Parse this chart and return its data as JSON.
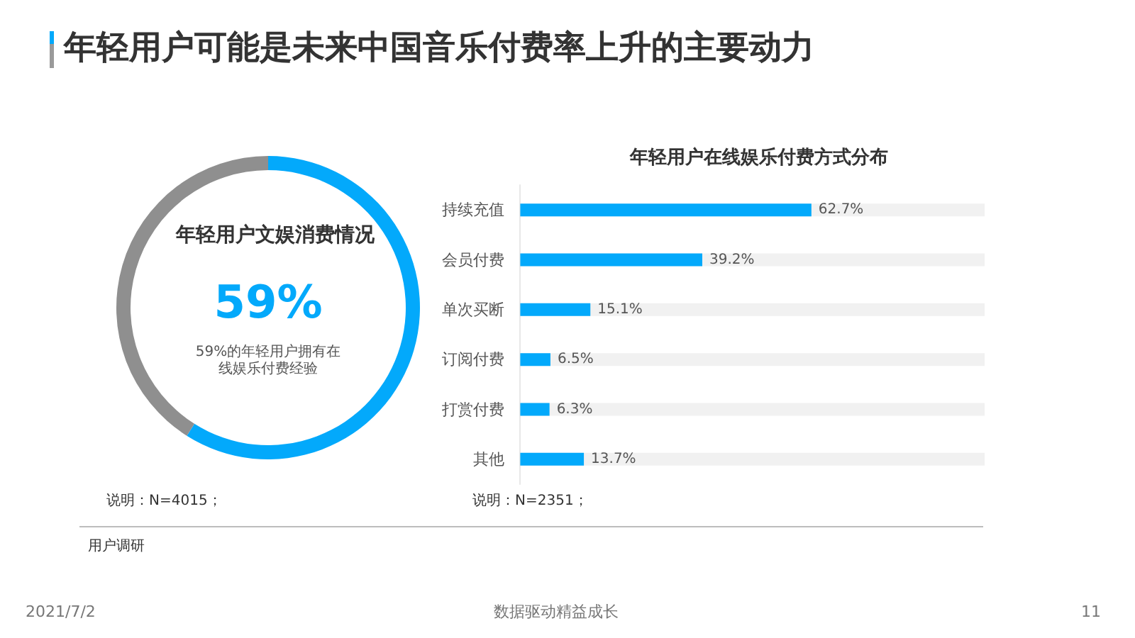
{
  "chart_data": [
    {
      "type": "other",
      "title": "年轻用户可能是未来中国音乐付费率上升的主要动力",
      "annotations": [
        "用户调研",
        "2021/7/2",
        "数据驱动精益成长",
        "11"
      ]
    },
    {
      "type": "donut",
      "title": "年轻用户文娱消费情况",
      "categories": [
        null,
        null
      ],
      "values": [
        59,
        41
      ],
      "colors": [
        "#03a9fb",
        "#8f8f8f"
      ],
      "value_labels": [
        "59%",
        null
      ],
      "annotations": [
        "59%的年轻用户拥有在线娱乐付费经验",
        "说明：N=4015；"
      ]
    },
    {
      "type": "bar",
      "orientation": "horizontal",
      "title": "年轻用户在线娱乐付费方式分布",
      "categories": [
        "持续充值",
        "会员付费",
        "单次买断",
        "订阅付费",
        "打赏付费",
        "其他"
      ],
      "values": [
        62.7,
        39.2,
        15.1,
        6.5,
        6.3,
        13.7
      ],
      "color": "#03a9fb",
      "value_labels": [
        "62.7%",
        "39.2%",
        "15.1%",
        "6.5%",
        "6.3%",
        "13.7%"
      ],
      "xlim": [
        0,
        100
      ],
      "tick_labels": "y",
      "annotations": [
        "说明：N=2351；"
      ]
    }
  ]
}
